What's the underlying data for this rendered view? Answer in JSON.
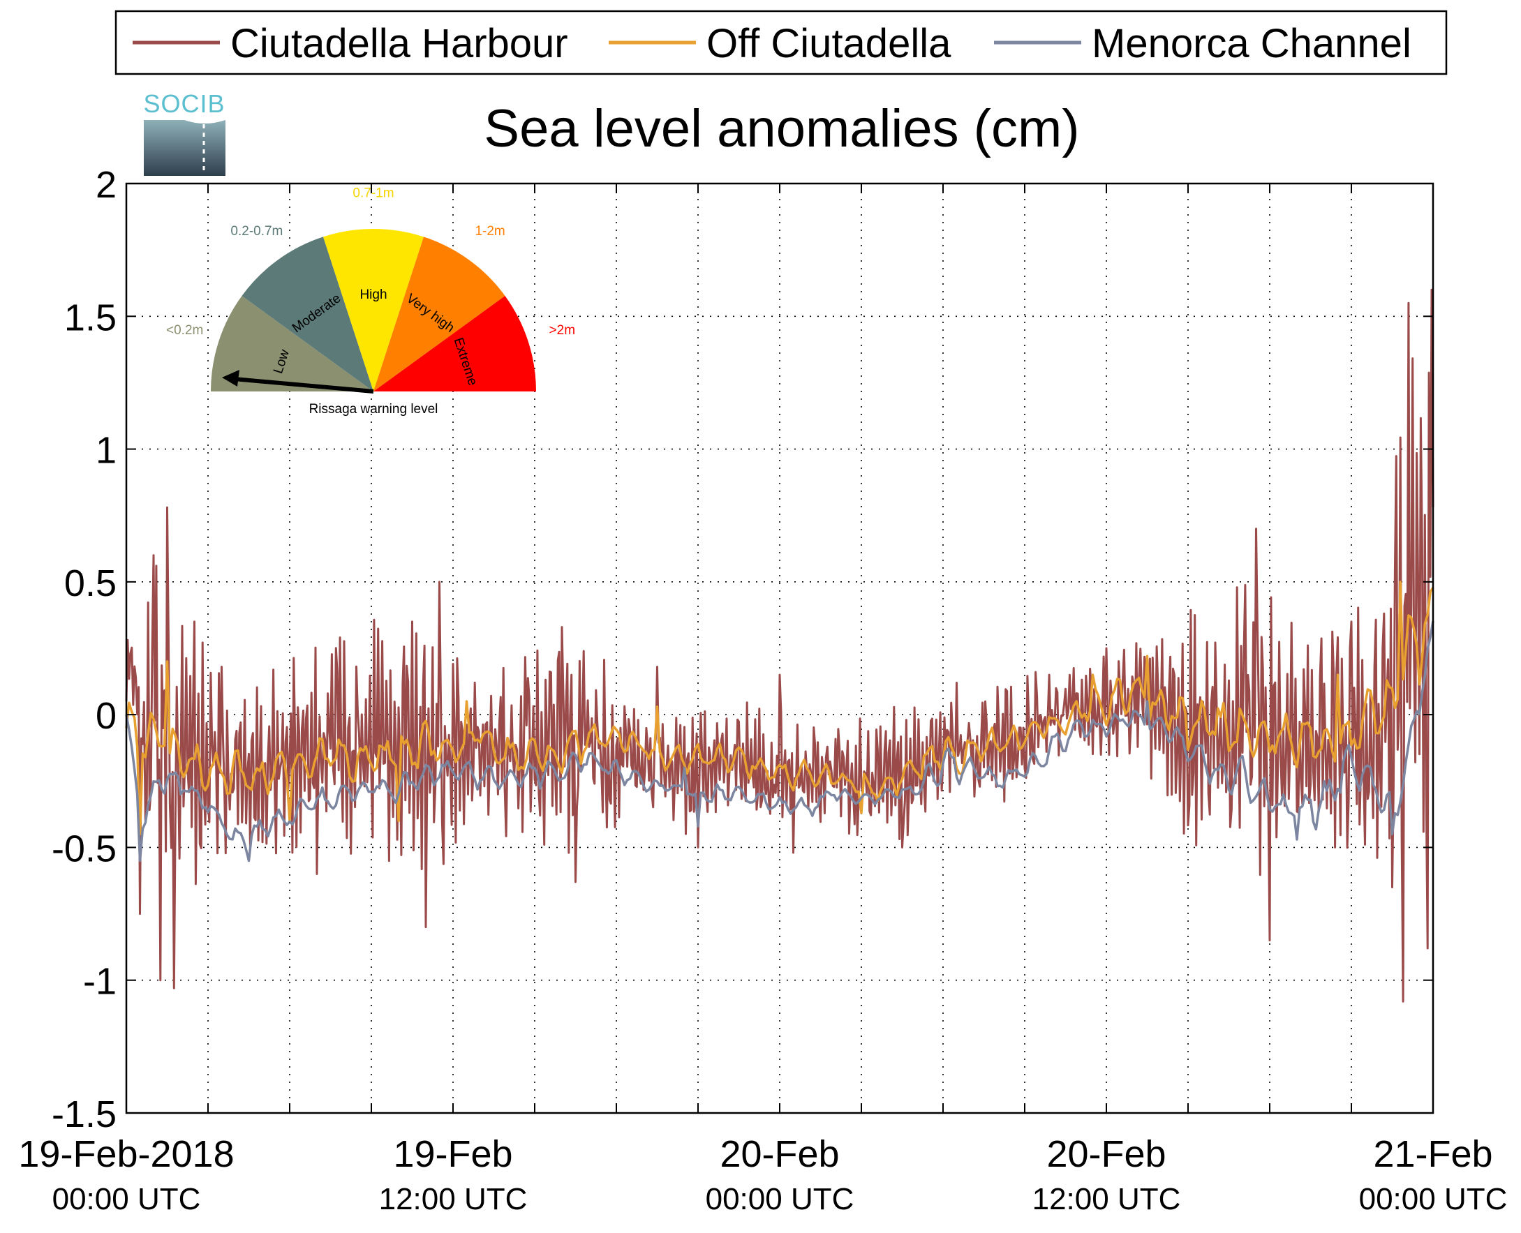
{
  "logo": {
    "text": "SOCIB"
  },
  "chart_data": {
    "type": "line",
    "title": "Sea level anomalies (cm)",
    "xlabel": "",
    "ylabel": "",
    "ylim": [
      -1.5,
      2
    ],
    "yticks": [
      -1.5,
      -1,
      -0.5,
      0,
      0.5,
      1,
      1.5,
      2
    ],
    "ytick_labels": [
      "-1.5",
      "-1",
      "-0.5",
      "0",
      "0.5",
      "1",
      "1.5",
      "2"
    ],
    "xlim_hours": [
      0,
      48
    ],
    "x_minor_tick_hours": [
      3,
      6,
      9,
      15,
      18,
      21,
      27,
      30,
      33,
      39,
      42,
      45
    ],
    "x_major_ticks": [
      {
        "hour": 0,
        "line1": "19-Feb-2018",
        "line2": "00:00 UTC"
      },
      {
        "hour": 12,
        "line1": "19-Feb",
        "line2": "12:00 UTC"
      },
      {
        "hour": 24,
        "line1": "20-Feb",
        "line2": "00:00 UTC"
      },
      {
        "hour": 36,
        "line1": "20-Feb",
        "line2": "12:00 UTC"
      },
      {
        "hour": 48,
        "line1": "21-Feb",
        "line2": "00:00 UTC"
      }
    ],
    "grid": true,
    "legend_position": "top",
    "series": [
      {
        "name": "Ciutadella Harbour",
        "color": "#9b4a4a",
        "envelope": [
          [
            0,
            0.05,
            0.35
          ],
          [
            0.5,
            -0.3,
            0.4
          ],
          [
            1,
            -0.7,
            0.55
          ],
          [
            1.5,
            -0.95,
            0.7
          ],
          [
            2,
            -0.85,
            0.55
          ],
          [
            2.5,
            -0.75,
            0.4
          ],
          [
            3,
            -0.6,
            0.25
          ],
          [
            4,
            -0.55,
            0.1
          ],
          [
            5,
            -0.6,
            0.15
          ],
          [
            6,
            -0.55,
            0.25
          ],
          [
            7,
            -0.5,
            0.3
          ],
          [
            8,
            -0.55,
            0.35
          ],
          [
            9,
            -0.6,
            0.4
          ],
          [
            10,
            -0.6,
            0.45
          ],
          [
            11,
            -0.7,
            0.4
          ],
          [
            12,
            -0.55,
            0.35
          ],
          [
            13,
            -0.45,
            0.25
          ],
          [
            14,
            -0.55,
            0.25
          ],
          [
            15,
            -0.55,
            0.35
          ],
          [
            16,
            -0.55,
            0.3
          ],
          [
            17,
            -0.45,
            0.25
          ],
          [
            18,
            -0.5,
            0.2
          ],
          [
            19,
            -0.35,
            0.05
          ],
          [
            20,
            -0.45,
            0.05
          ],
          [
            21,
            -0.45,
            0.05
          ],
          [
            22,
            -0.35,
            0.05
          ],
          [
            23,
            -0.45,
            0.05
          ],
          [
            24,
            -0.5,
            0.05
          ],
          [
            25,
            -0.45,
            0.0
          ],
          [
            26,
            -0.45,
            0.0
          ],
          [
            27,
            -0.5,
            0.0
          ],
          [
            28,
            -0.5,
            0.05
          ],
          [
            29,
            -0.45,
            0.05
          ],
          [
            30,
            -0.35,
            0.1
          ],
          [
            31,
            -0.35,
            0.1
          ],
          [
            32,
            -0.35,
            0.15
          ],
          [
            33,
            -0.3,
            0.15
          ],
          [
            34,
            -0.2,
            0.2
          ],
          [
            35,
            -0.15,
            0.25
          ],
          [
            36,
            -0.25,
            0.3
          ],
          [
            37,
            -0.2,
            0.35
          ],
          [
            38,
            -0.35,
            0.4
          ],
          [
            39,
            -0.55,
            0.45
          ],
          [
            40,
            -0.6,
            0.5
          ],
          [
            41,
            -0.65,
            0.55
          ],
          [
            42,
            -0.75,
            0.55
          ],
          [
            43,
            -0.7,
            0.5
          ],
          [
            44,
            -0.65,
            0.5
          ],
          [
            45,
            -0.6,
            0.45
          ],
          [
            46,
            -0.55,
            0.45
          ],
          [
            46.5,
            -0.8,
            1.0
          ],
          [
            47,
            -0.9,
            1.3
          ],
          [
            47.5,
            -0.95,
            1.45
          ],
          [
            48,
            -0.6,
            1.5
          ]
        ],
        "highlights": [
          [
            0.5,
            -0.75
          ],
          [
            1.0,
            0.6
          ],
          [
            1.25,
            -1.0
          ],
          [
            1.5,
            0.78
          ],
          [
            1.75,
            -1.03
          ],
          [
            2.5,
            0.35
          ],
          [
            3.5,
            0.18
          ],
          [
            7.0,
            -0.6
          ],
          [
            10.5,
            0.35
          ],
          [
            11.0,
            -0.8
          ],
          [
            11.5,
            0.5
          ],
          [
            16.0,
            0.33
          ],
          [
            16.5,
            -0.63
          ],
          [
            19.5,
            0.18
          ],
          [
            21.0,
            -0.5
          ],
          [
            24.0,
            0.15
          ],
          [
            24.5,
            -0.52
          ],
          [
            28.5,
            -0.5
          ],
          [
            30.5,
            0.12
          ],
          [
            36.0,
            0.25
          ],
          [
            41.5,
            0.7
          ],
          [
            42.0,
            -0.85
          ],
          [
            45.0,
            0.35
          ],
          [
            46.5,
            -0.65
          ],
          [
            46.9,
            -1.08
          ],
          [
            47.1,
            1.55
          ],
          [
            47.8,
            -0.88
          ],
          [
            47.95,
            1.6
          ]
        ]
      },
      {
        "name": "Off Ciutadella",
        "color": "#e8a030",
        "envelope": [
          [
            0,
            -0.05,
            0.1
          ],
          [
            0.5,
            -0.3,
            0.05
          ],
          [
            1,
            -0.25,
            0.05
          ],
          [
            1.5,
            -0.25,
            0.05
          ],
          [
            2,
            -0.3,
            0.0
          ],
          [
            3,
            -0.35,
            -0.1
          ],
          [
            4,
            -0.35,
            -0.1
          ],
          [
            5,
            -0.35,
            -0.1
          ],
          [
            6,
            -0.3,
            -0.1
          ],
          [
            7,
            -0.3,
            -0.05
          ],
          [
            8,
            -0.3,
            -0.05
          ],
          [
            9,
            -0.25,
            -0.05
          ],
          [
            10,
            -0.3,
            0.0
          ],
          [
            11,
            -0.25,
            0.0
          ],
          [
            12,
            -0.2,
            0.0
          ],
          [
            13,
            -0.15,
            0.0
          ],
          [
            14,
            -0.25,
            -0.05
          ],
          [
            15,
            -0.25,
            -0.05
          ],
          [
            16,
            -0.25,
            -0.05
          ],
          [
            17,
            -0.2,
            0.0
          ],
          [
            18,
            -0.15,
            0.0
          ],
          [
            19,
            -0.2,
            -0.05
          ],
          [
            20,
            -0.25,
            -0.1
          ],
          [
            21,
            -0.25,
            -0.1
          ],
          [
            22,
            -0.25,
            -0.1
          ],
          [
            23,
            -0.25,
            -0.1
          ],
          [
            24,
            -0.3,
            -0.15
          ],
          [
            25,
            -0.3,
            -0.15
          ],
          [
            26,
            -0.3,
            -0.15
          ],
          [
            27,
            -0.35,
            -0.2
          ],
          [
            28,
            -0.35,
            -0.2
          ],
          [
            29,
            -0.3,
            -0.1
          ],
          [
            30,
            -0.25,
            -0.05
          ],
          [
            31,
            -0.25,
            -0.05
          ],
          [
            32,
            -0.2,
            0.0
          ],
          [
            33,
            -0.2,
            0.0
          ],
          [
            34,
            -0.15,
            0.05
          ],
          [
            35,
            -0.05,
            0.1
          ],
          [
            36,
            -0.05,
            0.15
          ],
          [
            37,
            -0.05,
            0.2
          ],
          [
            38,
            -0.1,
            0.15
          ],
          [
            39,
            -0.2,
            0.1
          ],
          [
            40,
            -0.2,
            0.1
          ],
          [
            41,
            -0.2,
            0.1
          ],
          [
            42,
            -0.2,
            0.05
          ],
          [
            43,
            -0.25,
            0.05
          ],
          [
            44,
            -0.25,
            0.05
          ],
          [
            45,
            -0.25,
            0.1
          ],
          [
            46,
            -0.2,
            0.15
          ],
          [
            47,
            0.0,
            0.45
          ],
          [
            47.5,
            0.05,
            0.5
          ],
          [
            48,
            0.3,
            0.6
          ]
        ],
        "highlights": [
          [
            0.5,
            -0.45
          ],
          [
            1.5,
            0.2
          ],
          [
            6.0,
            -0.4
          ],
          [
            10.0,
            -0.4
          ],
          [
            12.5,
            0.05
          ],
          [
            19.5,
            0.03
          ],
          [
            27.0,
            -0.37
          ],
          [
            35.5,
            0.15
          ],
          [
            37.5,
            0.22
          ],
          [
            44.5,
            0.15
          ],
          [
            46.8,
            0.5
          ]
        ]
      },
      {
        "name": "Menorca Channel",
        "color": "#7c86a0",
        "envelope": [
          [
            0,
            -0.0,
            0.0
          ],
          [
            0.5,
            -0.5,
            -0.4
          ],
          [
            1,
            -0.35,
            -0.2
          ],
          [
            1.5,
            -0.3,
            -0.15
          ],
          [
            2,
            -0.3,
            -0.2
          ],
          [
            3,
            -0.4,
            -0.3
          ],
          [
            4,
            -0.55,
            -0.4
          ],
          [
            5,
            -0.5,
            -0.35
          ],
          [
            6,
            -0.45,
            -0.3
          ],
          [
            7,
            -0.4,
            -0.25
          ],
          [
            8,
            -0.35,
            -0.25
          ],
          [
            9,
            -0.35,
            -0.2
          ],
          [
            10,
            -0.35,
            -0.2
          ],
          [
            11,
            -0.3,
            -0.15
          ],
          [
            12,
            -0.25,
            -0.15
          ],
          [
            13,
            -0.3,
            -0.15
          ],
          [
            14,
            -0.3,
            -0.2
          ],
          [
            15,
            -0.3,
            -0.15
          ],
          [
            16,
            -0.3,
            -0.15
          ],
          [
            17,
            -0.2,
            -0.1
          ],
          [
            18,
            -0.3,
            -0.15
          ],
          [
            19,
            -0.3,
            -0.2
          ],
          [
            20,
            -0.3,
            -0.25
          ],
          [
            21,
            -0.35,
            -0.25
          ],
          [
            22,
            -0.35,
            -0.25
          ],
          [
            23,
            -0.35,
            -0.25
          ],
          [
            24,
            -0.4,
            -0.3
          ],
          [
            25,
            -0.4,
            -0.3
          ],
          [
            26,
            -0.35,
            -0.25
          ],
          [
            27,
            -0.35,
            -0.3
          ],
          [
            28,
            -0.35,
            -0.25
          ],
          [
            29,
            -0.35,
            -0.2
          ],
          [
            30,
            -0.25,
            -0.1
          ],
          [
            31,
            -0.3,
            -0.15
          ],
          [
            32,
            -0.3,
            -0.2
          ],
          [
            33,
            -0.25,
            -0.15
          ],
          [
            34,
            -0.2,
            -0.05
          ],
          [
            35,
            -0.1,
            0.0
          ],
          [
            36,
            -0.1,
            0.0
          ],
          [
            37,
            -0.05,
            0.05
          ],
          [
            38,
            -0.1,
            0.0
          ],
          [
            39,
            -0.2,
            -0.05
          ],
          [
            40,
            -0.3,
            -0.1
          ],
          [
            41,
            -0.35,
            -0.15
          ],
          [
            42,
            -0.4,
            -0.25
          ],
          [
            43,
            -0.45,
            -0.3
          ],
          [
            44,
            -0.45,
            -0.2
          ],
          [
            45,
            -0.3,
            -0.05
          ],
          [
            46,
            -0.4,
            -0.2
          ],
          [
            46.5,
            -0.45,
            -0.3
          ],
          [
            47,
            -0.3,
            -0.1
          ],
          [
            47.5,
            0.0,
            0.2
          ],
          [
            48,
            0.3,
            0.4
          ]
        ],
        "highlights": [
          [
            0.5,
            -0.55
          ],
          [
            2.0,
            -0.3
          ],
          [
            4.5,
            -0.55
          ],
          [
            20.5,
            -0.2
          ],
          [
            21.0,
            -0.42
          ],
          [
            35.5,
            -0.02
          ],
          [
            37.5,
            0.05
          ],
          [
            43.0,
            -0.47
          ],
          [
            46.5,
            -0.45
          ]
        ]
      }
    ]
  },
  "gauge": {
    "caption": "Rissaga warning level",
    "needle_level": "Low",
    "segments": [
      {
        "label": "Low",
        "range": "<0.2m",
        "color": "#8a9070",
        "range_color": "#8a9070"
      },
      {
        "label": "Moderate",
        "range": "0.2-0.7m",
        "color": "#5c7a78",
        "range_color": "#5c7a78"
      },
      {
        "label": "High",
        "range": "0.7-1m",
        "color": "#ffe600",
        "range_color": "#f5d400"
      },
      {
        "label": "Very high",
        "range": "1-2m",
        "color": "#ff8000",
        "range_color": "#ff8000"
      },
      {
        "label": "Extreme",
        "range": ">2m",
        "color": "#ff0000",
        "range_color": "#ff0000"
      }
    ]
  }
}
